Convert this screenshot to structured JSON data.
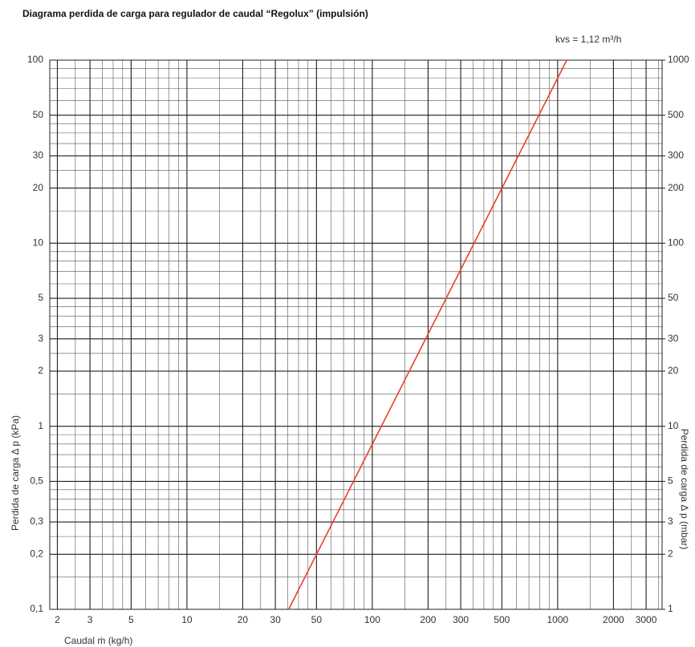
{
  "chart_data": {
    "type": "line",
    "title": "Diagrama perdida de carga para regulador de caudal “Regolux” (impulsión)",
    "annotation": "kvs = 1,12 m³/h",
    "x_label": "Caudal ṁ (kg/h)",
    "y_label": "Perdida de carga Δ p (kPa)",
    "y2_label": "Perdida de carga Δ p (mbar)",
    "x": [
      35.4,
      1120
    ],
    "series": [
      {
        "color": "#e8402a",
        "values": [
          0.1,
          100
        ]
      }
    ],
    "x_log": true,
    "y_log": true,
    "grid": true,
    "xlim": [
      1.82,
      3660
    ],
    "xticks": [
      2,
      3,
      5,
      10,
      20,
      30,
      50,
      100,
      200,
      300,
      500,
      1000,
      2000,
      3000
    ],
    "ylim": [
      0.1,
      100
    ],
    "yticks": [
      {
        "value": 0.1,
        "label": "0,1"
      },
      {
        "value": 0.2,
        "label": "0,2"
      },
      {
        "value": 0.3,
        "label": "0,3"
      },
      {
        "value": 0.5,
        "label": "0,5"
      },
      1,
      2,
      3,
      5,
      10,
      20,
      30,
      50,
      100
    ],
    "y2lim": [
      1,
      1000
    ],
    "y2ticks": [
      1,
      2,
      3,
      5,
      10,
      20,
      30,
      50,
      100,
      200,
      300,
      500,
      1000
    ]
  }
}
